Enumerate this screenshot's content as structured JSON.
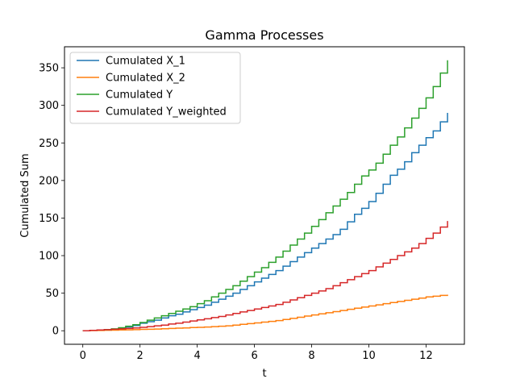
{
  "chart_data": {
    "type": "line",
    "step": true,
    "title": "Gamma Processes",
    "xlabel": "t",
    "ylabel": "Cumulated Sum",
    "xlim": [
      -0.64,
      13.34
    ],
    "ylim": [
      -18,
      378
    ],
    "xticks": [
      0,
      2,
      4,
      6,
      8,
      10,
      12
    ],
    "yticks": [
      0,
      50,
      100,
      150,
      200,
      250,
      300,
      350
    ],
    "grid": false,
    "legend_position": "top-left",
    "x": [
      0.0,
      0.25,
      0.5,
      0.75,
      1.0,
      1.25,
      1.5,
      1.75,
      2.0,
      2.25,
      2.5,
      2.75,
      3.0,
      3.25,
      3.5,
      3.75,
      4.0,
      4.25,
      4.5,
      4.75,
      5.0,
      5.25,
      5.5,
      5.75,
      6.0,
      6.25,
      6.5,
      6.75,
      7.0,
      7.25,
      7.5,
      7.75,
      8.0,
      8.25,
      8.5,
      8.75,
      9.0,
      9.25,
      9.5,
      9.75,
      10.0,
      10.25,
      10.5,
      10.75,
      11.0,
      11.25,
      11.5,
      11.75,
      12.0,
      12.25,
      12.5,
      12.75
    ],
    "series": [
      {
        "name": "Cumulated X_1",
        "color": "#1f77b4",
        "values": [
          0,
          0.5,
          1,
          1.5,
          2,
          3,
          5,
          7,
          10,
          12,
          14,
          17,
          20,
          22,
          25,
          28,
          31,
          34,
          38,
          42,
          46,
          50,
          55,
          60,
          65,
          70,
          75,
          80,
          86,
          92,
          98,
          104,
          110,
          116,
          122,
          128,
          135,
          145,
          155,
          163,
          172,
          183,
          195,
          207,
          215,
          225,
          237,
          247,
          257,
          266,
          278,
          290
        ]
      },
      {
        "name": "Cumulated X_2",
        "color": "#ff7f0e",
        "values": [
          0,
          0.2,
          0.4,
          0.6,
          0.8,
          1,
          1.2,
          1.5,
          1.8,
          2,
          2.3,
          2.6,
          3,
          3.4,
          3.8,
          4.2,
          4.6,
          5,
          5.5,
          6,
          6.5,
          7.5,
          8.5,
          9.5,
          10.5,
          11.5,
          12.5,
          13.5,
          15,
          16.5,
          18,
          19.5,
          21,
          22.5,
          24,
          25.5,
          27,
          28.5,
          30,
          31.5,
          33,
          34.5,
          36,
          37.5,
          39,
          40.5,
          42,
          43.5,
          45,
          46,
          47,
          48
        ]
      },
      {
        "name": "Cumulated Y",
        "color": "#2ca02c",
        "values": [
          0,
          0.5,
          1,
          1.5,
          2.5,
          4,
          6,
          8,
          11,
          14,
          17,
          20,
          23,
          26,
          29,
          32,
          36,
          40,
          45,
          50,
          55,
          60,
          66,
          72,
          78,
          84,
          91,
          98,
          106,
          114,
          122,
          130,
          139,
          148,
          157,
          166,
          175,
          184,
          195,
          206,
          214,
          223,
          235,
          247,
          258,
          270,
          283,
          296,
          310,
          325,
          343,
          360
        ]
      },
      {
        "name": "Cumulated Y_weighted",
        "color": "#d62728",
        "values": [
          0,
          0.5,
          1,
          1.5,
          2,
          2.5,
          3,
          3.8,
          4.5,
          5.5,
          6.5,
          7.5,
          9,
          10,
          11.5,
          13,
          14.5,
          16,
          17.5,
          19,
          21,
          23,
          25,
          27,
          29,
          31,
          33,
          35,
          38,
          41,
          44,
          47,
          50,
          53,
          56,
          60,
          64,
          68,
          72,
          76,
          80,
          85,
          90,
          95,
          100,
          105,
          110,
          116,
          123,
          130,
          138,
          146
        ]
      }
    ]
  }
}
